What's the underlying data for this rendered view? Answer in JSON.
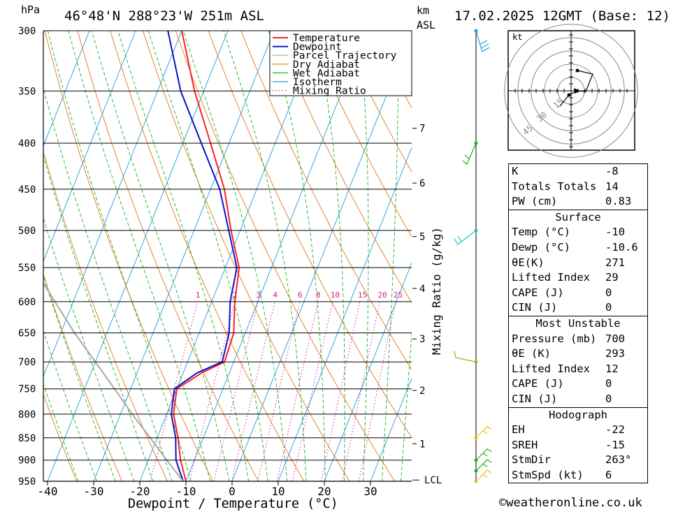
{
  "header": {
    "location": "46°48'N 288°23'W 251m ASL",
    "datetime": "17.02.2025 12GMT (Base: 12)",
    "hpa_label": "hPa",
    "km_label": "km",
    "asl_label": "ASL"
  },
  "chart_data": {
    "type": "line",
    "title": "46°48'N 288°23'W 251m ASL",
    "xlabel": "Dewpoint / Temperature (°C)",
    "ylabel": "hPa",
    "right_axis_label": "Mixing Ratio (g/kg)",
    "xlim": [
      -40,
      40
    ],
    "ylim": [
      950,
      300
    ],
    "y_scale": "log",
    "skew": true,
    "x_ticks": [
      -40,
      -30,
      -20,
      -10,
      0,
      10,
      20,
      30
    ],
    "pressure_levels": [
      300,
      350,
      400,
      450,
      500,
      550,
      600,
      650,
      700,
      750,
      800,
      850,
      900,
      950
    ],
    "km_ticks": [
      {
        "km": 7,
        "p": 385
      },
      {
        "km": 6,
        "p": 443
      },
      {
        "km": 5,
        "p": 508
      },
      {
        "km": 4,
        "p": 580
      },
      {
        "km": 3,
        "p": 660
      },
      {
        "km": 2,
        "p": 753
      },
      {
        "km": 1,
        "p": 863
      }
    ],
    "lcl_label": "LCL",
    "lcl_pressure": 947,
    "mixing_ratio_labels": [
      "1",
      "2",
      "3",
      "4",
      "6",
      "8",
      "10",
      "15",
      "20",
      "25"
    ],
    "mixing_ratio_values": [
      1,
      2,
      3,
      4,
      6,
      8,
      10,
      15,
      20,
      25
    ],
    "legend": [
      "Temperature",
      "Dewpoint",
      "Parcel Trajectory",
      "Dry Adiabat",
      "Wet Adiabat",
      "Isotherm",
      "Mixing Ratio"
    ],
    "legend_position": "top-right",
    "series": [
      {
        "name": "Temperature",
        "color": "#ff2020",
        "points": [
          [
            950,
            -10
          ],
          [
            900,
            -13
          ],
          [
            850,
            -15.5
          ],
          [
            800,
            -18.5
          ],
          [
            750,
            -20
          ],
          [
            720,
            -16
          ],
          [
            700,
            -12
          ],
          [
            650,
            -12.5
          ],
          [
            600,
            -15
          ],
          [
            550,
            -17
          ],
          [
            500,
            -22
          ],
          [
            450,
            -27
          ],
          [
            400,
            -34
          ],
          [
            350,
            -42
          ],
          [
            300,
            -50
          ]
        ]
      },
      {
        "name": "Dewpoint",
        "color": "#1010d0",
        "points": [
          [
            950,
            -10.6
          ],
          [
            900,
            -14
          ],
          [
            850,
            -16
          ],
          [
            800,
            -19
          ],
          [
            750,
            -20.5
          ],
          [
            720,
            -17
          ],
          [
            700,
            -12.5
          ],
          [
            650,
            -13.5
          ],
          [
            600,
            -16
          ],
          [
            550,
            -17.5
          ],
          [
            500,
            -22.5
          ],
          [
            450,
            -28
          ],
          [
            400,
            -36
          ],
          [
            350,
            -45
          ],
          [
            300,
            -53
          ]
        ]
      },
      {
        "name": "Parcel Trajectory",
        "color": "#a8a8a8",
        "points": [
          [
            950,
            -10.6
          ],
          [
            900,
            -16
          ],
          [
            850,
            -21.5
          ],
          [
            800,
            -27.5
          ],
          [
            750,
            -33.5
          ],
          [
            700,
            -40
          ],
          [
            650,
            -47
          ],
          [
            600,
            -54
          ],
          [
            550,
            -61.5
          ],
          [
            500,
            -69.5
          ],
          [
            450,
            -78
          ],
          [
            400,
            -87
          ],
          [
            350,
            -97
          ],
          [
            300,
            -107
          ]
        ]
      }
    ],
    "wind_barbs_levels": [
      300,
      400,
      500,
      700,
      850,
      900,
      925,
      950
    ]
  },
  "hodograph": {
    "unit_label": "kt",
    "ring_labels": [
      "15",
      "30",
      "45"
    ]
  },
  "indices": {
    "rows": [
      {
        "label": "K",
        "value": "-8"
      },
      {
        "label": "Totals Totals",
        "value": "14"
      },
      {
        "label": "PW (cm)",
        "value": "0.83"
      }
    ]
  },
  "surface": {
    "title": "Surface",
    "rows": [
      {
        "label": "Temp (°C)",
        "value": "-10"
      },
      {
        "label": "Dewp (°C)",
        "value": "-10.6"
      },
      {
        "label": "θE(K)",
        "value": "271"
      },
      {
        "label": "Lifted Index",
        "value": "29"
      },
      {
        "label": "CAPE (J)",
        "value": "0"
      },
      {
        "label": "CIN (J)",
        "value": "0"
      }
    ]
  },
  "most_unstable": {
    "title": "Most Unstable",
    "rows": [
      {
        "label": "Pressure (mb)",
        "value": "700"
      },
      {
        "label": "θE (K)",
        "value": "293"
      },
      {
        "label": "Lifted Index",
        "value": "12"
      },
      {
        "label": "CAPE (J)",
        "value": "0"
      },
      {
        "label": "CIN (J)",
        "value": "0"
      }
    ]
  },
  "hodograph_table": {
    "title": "Hodograph",
    "rows": [
      {
        "label": "EH",
        "value": "-22"
      },
      {
        "label": "SREH",
        "value": "-15"
      },
      {
        "label": "StmDir",
        "value": "263°"
      },
      {
        "label": "StmSpd (kt)",
        "value": "6"
      }
    ]
  },
  "footer": {
    "copyright": "©weatheronline.co.uk"
  }
}
